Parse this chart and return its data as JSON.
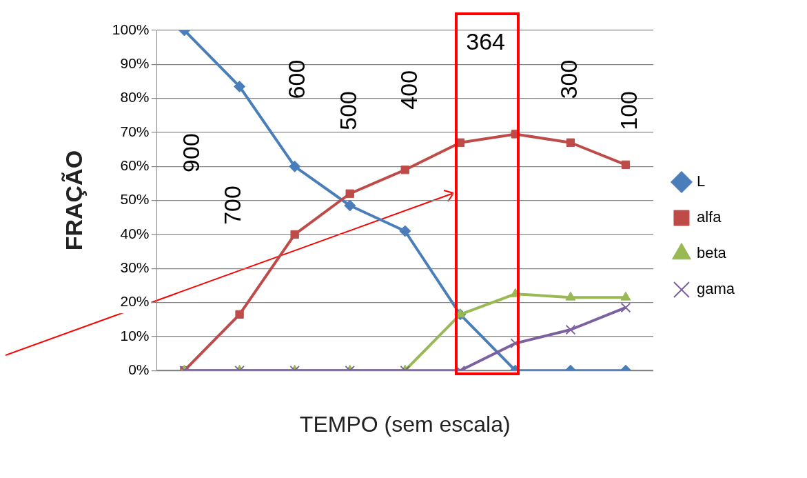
{
  "chart_data": {
    "type": "line",
    "xlabel": "TEMPO (sem escala)",
    "ylabel": "FRAÇÃO",
    "categories": [
      null,
      null,
      null,
      null,
      null,
      null,
      null,
      null,
      null
    ],
    "series": [
      {
        "name": "L",
        "color": "#4a7ebb",
        "marker": "diamond",
        "values": [
          100,
          83.5,
          60,
          48.5,
          41,
          16.5,
          0,
          0,
          0
        ]
      },
      {
        "name": "alfa",
        "color": "#be4b48",
        "marker": "square",
        "values": [
          0,
          16.5,
          40,
          52,
          59,
          67,
          69.5,
          67,
          60.5
        ]
      },
      {
        "name": "beta",
        "color": "#98b954",
        "marker": "triangle",
        "values": [
          0,
          0,
          0,
          0,
          0,
          16.5,
          22.5,
          21.5,
          21.5
        ]
      },
      {
        "name": "gama",
        "color": "#7d60a0",
        "marker": "cross",
        "values": [
          0,
          0,
          0,
          0,
          0,
          0,
          8,
          12,
          18.5
        ]
      }
    ],
    "ylim": [
      0,
      100
    ],
    "yticks": [
      {
        "value": 0,
        "label": "0%"
      },
      {
        "value": 10,
        "label": "10%"
      },
      {
        "value": 20,
        "label": "20%"
      },
      {
        "value": 30,
        "label": "30%"
      },
      {
        "value": 40,
        "label": "40%"
      },
      {
        "value": 50,
        "label": "50%"
      },
      {
        "value": 60,
        "label": "60%"
      },
      {
        "value": 70,
        "label": "70%"
      },
      {
        "value": 80,
        "label": "80%"
      },
      {
        "value": 90,
        "label": "90%"
      },
      {
        "value": 100,
        "label": "100%"
      }
    ],
    "grid": "y",
    "legend": "right",
    "line_style": "solid",
    "annotations": [
      "900",
      "700",
      "600",
      "500",
      "400",
      "364",
      "300",
      "100"
    ]
  }
}
